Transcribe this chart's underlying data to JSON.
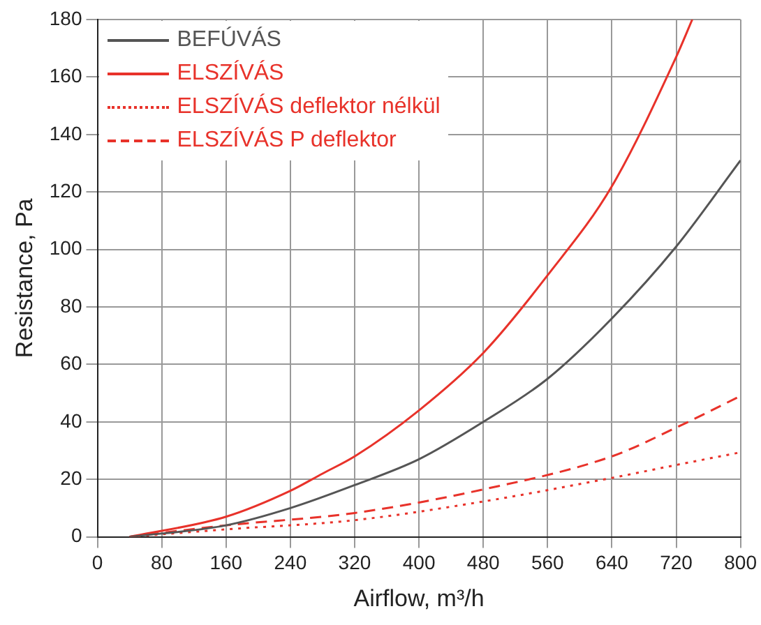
{
  "chart_data": {
    "type": "line",
    "xlabel": "Airflow, m³/h",
    "ylabel": "Resistance, Pa",
    "xlim": [
      0,
      800
    ],
    "xticks": [
      0,
      80,
      160,
      240,
      320,
      400,
      480,
      560,
      640,
      720,
      800
    ],
    "ylim": [
      0,
      180
    ],
    "yticks": [
      0,
      20,
      40,
      60,
      80,
      100,
      120,
      140,
      160,
      180
    ],
    "grid": true,
    "legend": "top left",
    "marker": "none",
    "series": [
      {
        "name": "BEFÚVÁS",
        "color": "#555555",
        "line_style": "solid",
        "x": [
          40,
          160,
          240,
          320,
          400,
          480,
          560,
          640,
          720,
          800
        ],
        "values": [
          0,
          4,
          10,
          18,
          27,
          40,
          55,
          76,
          101,
          131
        ]
      },
      {
        "name": "ELSZÍVÁS",
        "color": "#e8322a",
        "line_style": "solid",
        "x": [
          40,
          160,
          240,
          280,
          320,
          400,
          480,
          560,
          640,
          720,
          740
        ],
        "values": [
          0,
          7,
          16,
          22,
          28,
          44,
          64,
          91,
          122,
          167,
          180
        ]
      },
      {
        "name": "ELSZÍVÁS deflektor nélkül",
        "color": "#e8322a",
        "line_style": "dotted",
        "x": [
          40,
          160,
          320,
          480,
          640,
          720,
          800
        ],
        "values": [
          0,
          2.6,
          5.8,
          12.3,
          20.5,
          25,
          29.4
        ]
      },
      {
        "name": "ELSZÍVÁS P deflektor",
        "color": "#e8322a",
        "line_style": "dashed",
        "x": [
          40,
          160,
          320,
          480,
          640,
          720,
          800
        ],
        "values": [
          0,
          4,
          8.3,
          16.5,
          28,
          38,
          49
        ]
      }
    ]
  }
}
